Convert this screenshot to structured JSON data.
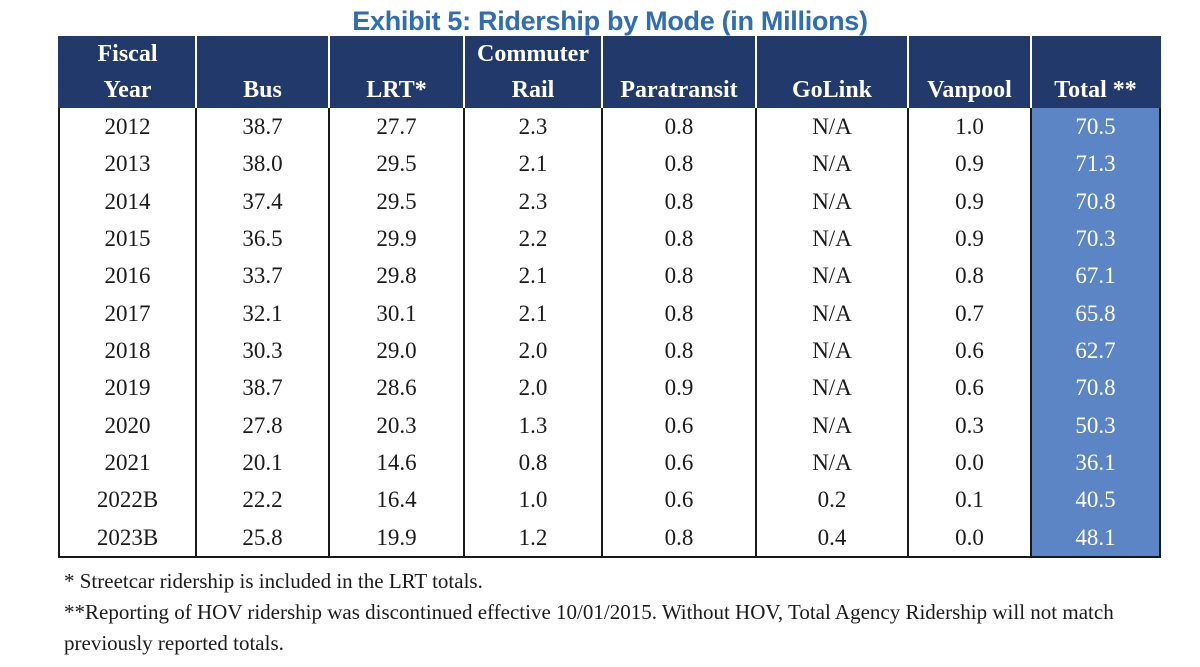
{
  "title": "Exhibit 5: Ridership by Mode (in Millions)",
  "columns": {
    "year": [
      "Fiscal",
      "Year"
    ],
    "bus": [
      "",
      "Bus"
    ],
    "lrt": [
      "",
      "LRT*"
    ],
    "rail": [
      "Commuter",
      "Rail"
    ],
    "para": [
      "",
      "Paratransit"
    ],
    "golink": [
      "",
      "GoLink"
    ],
    "van": [
      "",
      "Vanpool"
    ],
    "total": [
      "",
      "Total **"
    ]
  },
  "rows": [
    {
      "year": "2012",
      "bus": "38.7",
      "lrt": "27.7",
      "rail": "2.3",
      "para": "0.8",
      "golink": "N/A",
      "van": "1.0",
      "total": "70.5"
    },
    {
      "year": "2013",
      "bus": "38.0",
      "lrt": "29.5",
      "rail": "2.1",
      "para": "0.8",
      "golink": "N/A",
      "van": "0.9",
      "total": "71.3"
    },
    {
      "year": "2014",
      "bus": "37.4",
      "lrt": "29.5",
      "rail": "2.3",
      "para": "0.8",
      "golink": "N/A",
      "van": "0.9",
      "total": "70.8"
    },
    {
      "year": "2015",
      "bus": "36.5",
      "lrt": "29.9",
      "rail": "2.2",
      "para": "0.8",
      "golink": "N/A",
      "van": "0.9",
      "total": "70.3"
    },
    {
      "year": "2016",
      "bus": "33.7",
      "lrt": "29.8",
      "rail": "2.1",
      "para": "0.8",
      "golink": "N/A",
      "van": "0.8",
      "total": "67.1"
    },
    {
      "year": "2017",
      "bus": "32.1",
      "lrt": "30.1",
      "rail": "2.1",
      "para": "0.8",
      "golink": "N/A",
      "van": "0.7",
      "total": "65.8"
    },
    {
      "year": "2018",
      "bus": "30.3",
      "lrt": "29.0",
      "rail": "2.0",
      "para": "0.8",
      "golink": "N/A",
      "van": "0.6",
      "total": "62.7"
    },
    {
      "year": "2019",
      "bus": "38.7",
      "lrt": "28.6",
      "rail": "2.0",
      "para": "0.9",
      "golink": "N/A",
      "van": "0.6",
      "total": "70.8"
    },
    {
      "year": "2020",
      "bus": "27.8",
      "lrt": "20.3",
      "rail": "1.3",
      "para": "0.6",
      "golink": "N/A",
      "van": "0.3",
      "total": "50.3"
    },
    {
      "year": "2021",
      "bus": "20.1",
      "lrt": "14.6",
      "rail": "0.8",
      "para": "0.6",
      "golink": "N/A",
      "van": "0.0",
      "total": "36.1"
    },
    {
      "year": "2022B",
      "bus": "22.2",
      "lrt": "16.4",
      "rail": "1.0",
      "para": "0.6",
      "golink": "0.2",
      "van": "0.1",
      "total": "40.5"
    },
    {
      "year": "2023B",
      "bus": "25.8",
      "lrt": "19.9",
      "rail": "1.2",
      "para": "0.8",
      "golink": "0.4",
      "van": "0.0",
      "total": "48.1"
    }
  ],
  "notes": [
    "* Streetcar ridership is included in the LRT totals.",
    "**Reporting of HOV ridership was discontinued effective 10/01/2015.  Without HOV, Total Agency Ridership will not match previously reported totals."
  ],
  "colors": {
    "title": "#2f6db5",
    "header_bg": "#223a6b",
    "total_bg": "#5b85c4"
  }
}
